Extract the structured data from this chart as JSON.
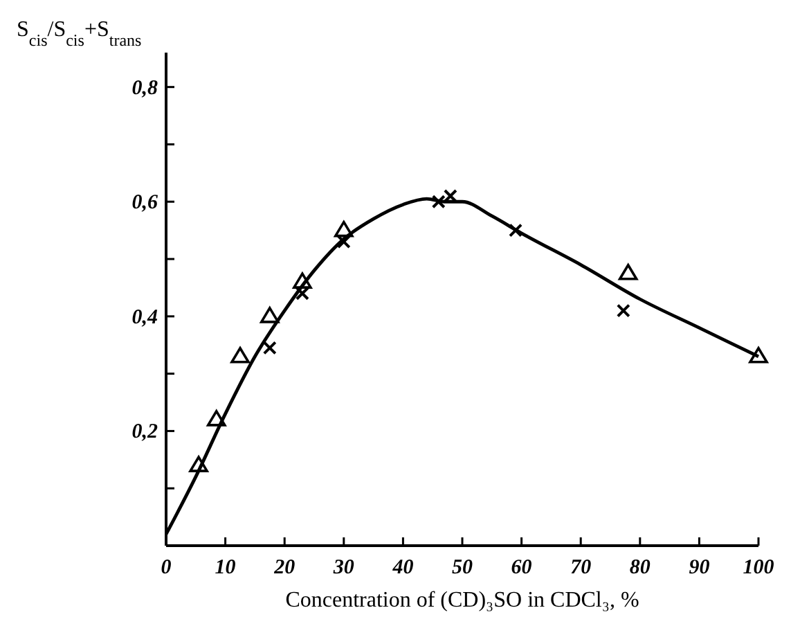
{
  "chart_data": {
    "type": "scatter",
    "xlabel": "Concentration of (CD)₃SO in CDCl₃, %",
    "ylabel": "S$_{cis}$/S$_{cis}$+S$_{trans}$",
    "xlim": [
      0,
      100
    ],
    "xticks": [
      0,
      10,
      20,
      30,
      40,
      50,
      60,
      70,
      80,
      90,
      100
    ],
    "ylim": [
      0,
      0.86
    ],
    "yticks": [
      {
        "value": 0.1,
        "label": null
      },
      {
        "value": 0.2,
        "label": "0,2"
      },
      {
        "value": 0.3,
        "label": null
      },
      {
        "value": 0.4,
        "label": "0,4"
      },
      {
        "value": 0.5,
        "label": null
      },
      {
        "value": 0.6,
        "label": "0,6"
      },
      {
        "value": 0.7,
        "label": null
      },
      {
        "value": 0.8,
        "label": "0,8"
      }
    ],
    "grid": false,
    "series": [
      {
        "marker": "triangle",
        "color": "#000000",
        "x": [
          5.5,
          8.5,
          12.5,
          17.5,
          23,
          30,
          78,
          100
        ],
        "values": [
          0.14,
          0.22,
          0.33,
          0.4,
          0.46,
          0.55,
          0.475,
          0.33
        ]
      },
      {
        "marker": "cross",
        "color": "#000000",
        "x": [
          17.5,
          23,
          30,
          46,
          48,
          59,
          77.2
        ],
        "values": [
          0.345,
          0.44,
          0.53,
          0.6,
          0.61,
          0.55,
          0.41
        ]
      },
      {
        "type": "line",
        "marker": "none",
        "line_style": "solid",
        "color": "#000000",
        "x": [
          0,
          5,
          10,
          15,
          20,
          25,
          30,
          35,
          40,
          44,
          47,
          50,
          55,
          60,
          70,
          80,
          90,
          100
        ],
        "values": [
          0.02,
          0.12,
          0.23,
          0.33,
          0.41,
          0.48,
          0.535,
          0.57,
          0.595,
          0.605,
          0.6,
          0.6,
          0.575,
          0.545,
          0.49,
          0.43,
          0.38,
          0.33
        ]
      }
    ]
  }
}
